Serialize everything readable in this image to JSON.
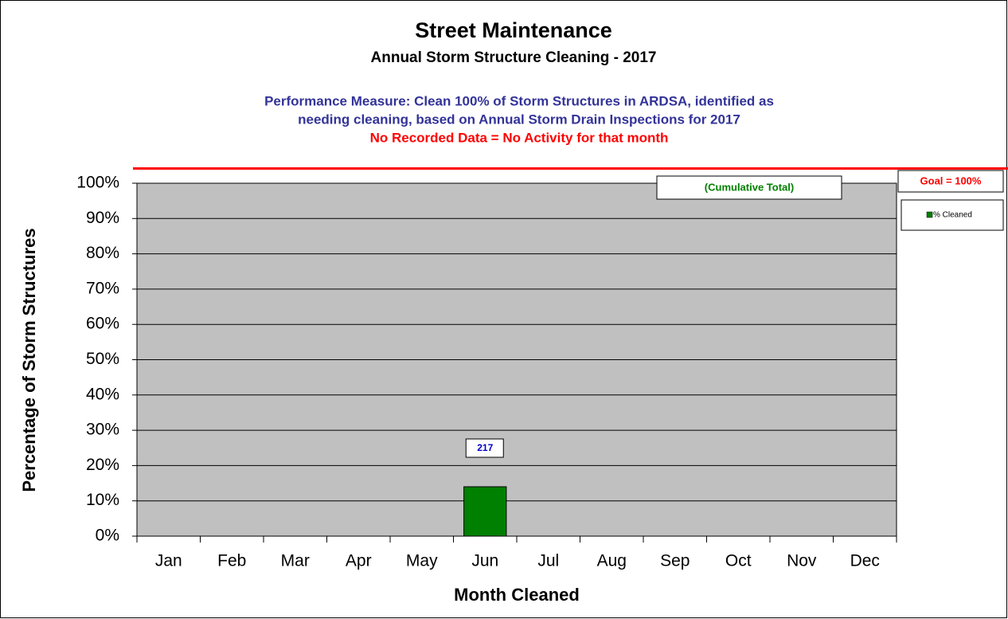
{
  "chart_data": {
    "type": "bar",
    "title": "Street Maintenance",
    "subtitle": "Annual Storm Structure Cleaning - 2017",
    "notes": [
      "Performance Measure:  Clean 100% of Storm Structures in ARDSA, identified as",
      "needing cleaning, based on Annual Storm Drain Inspections for 2017"
    ],
    "warning": "No Recorded Data = No Activity for that month",
    "box_label": "(Cumulative Total)",
    "goal_label": "Goal = 100%",
    "x_label": "Month Cleaned",
    "y_label": "Percentage of Storm Structures",
    "categories": [
      "Jan",
      "Feb",
      "Mar",
      "Apr",
      "May",
      "Jun",
      "Jul",
      "Aug",
      "Sep",
      "Oct",
      "Nov",
      "Dec"
    ],
    "series": [
      {
        "name": "% Cleaned",
        "color": "#008000",
        "values": [
          null,
          null,
          null,
          null,
          null,
          14,
          null,
          null,
          null,
          null,
          null,
          null
        ]
      }
    ],
    "count_annotation": {
      "category_index": 5,
      "count": 217
    },
    "ylim": [
      0,
      100
    ],
    "yticks": [
      {
        "value": 0,
        "label": "0%"
      },
      {
        "value": 10,
        "label": "10%"
      },
      {
        "value": 20,
        "label": "20%"
      },
      {
        "value": 30,
        "label": "30%"
      },
      {
        "value": 40,
        "label": "40%"
      },
      {
        "value": 50,
        "label": "50%"
      },
      {
        "value": 60,
        "label": "60%"
      },
      {
        "value": 70,
        "label": "70%"
      },
      {
        "value": 80,
        "label": "80%"
      },
      {
        "value": 90,
        "label": "90%"
      },
      {
        "value": 100,
        "label": "100%"
      }
    ],
    "grid": true,
    "plot_background": "#c0c0c0"
  }
}
